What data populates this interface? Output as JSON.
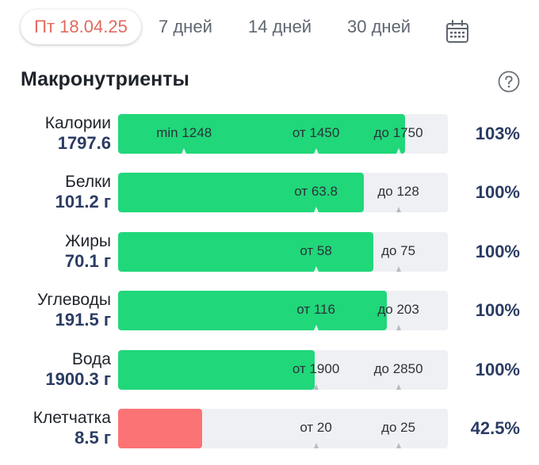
{
  "tabs": {
    "active": "Пт 18.04.25",
    "items": [
      "7 дней",
      "14 дней",
      "30 дней"
    ],
    "calendar_icon": "calendar-icon"
  },
  "section": {
    "title": "Макронутриенты",
    "help_icon": "question-circle-icon"
  },
  "colors": {
    "fill_ok": "#20d77a",
    "fill_low": "#fb7375",
    "active_tab": "#e06a5e",
    "value_text": "#2b3c63"
  },
  "nutrients": [
    {
      "name": "Калории",
      "value": "1797.6",
      "percent": "103%",
      "fill": 0.87,
      "status": "ok",
      "marks": [
        {
          "label": "min 1248",
          "pos": 0.2
        },
        {
          "label": "от 1450",
          "pos": 0.6
        },
        {
          "label": "до 1750",
          "pos": 0.85
        }
      ]
    },
    {
      "name": "Белки",
      "value": "101.2 г",
      "percent": "100%",
      "fill": 0.745,
      "status": "ok",
      "marks": [
        {
          "label": "от 63.8",
          "pos": 0.6
        },
        {
          "label": "до 128",
          "pos": 0.85
        }
      ]
    },
    {
      "name": "Жиры",
      "value": "70.1 г",
      "percent": "100%",
      "fill": 0.775,
      "status": "ok",
      "marks": [
        {
          "label": "от 58",
          "pos": 0.6
        },
        {
          "label": "до 75",
          "pos": 0.85
        }
      ]
    },
    {
      "name": "Углеводы",
      "value": "191.5 г",
      "percent": "100%",
      "fill": 0.815,
      "status": "ok",
      "marks": [
        {
          "label": "от 116",
          "pos": 0.6
        },
        {
          "label": "до 203",
          "pos": 0.85
        }
      ]
    },
    {
      "name": "Вода",
      "value": "1900.3 г",
      "percent": "100%",
      "fill": 0.595,
      "status": "ok",
      "marks": [
        {
          "label": "от 1900",
          "pos": 0.6
        },
        {
          "label": "до 2850",
          "pos": 0.85
        }
      ]
    },
    {
      "name": "Клетчатка",
      "value": "8.5 г",
      "percent": "42.5%",
      "fill": 0.255,
      "status": "low",
      "marks": [
        {
          "label": "от 20",
          "pos": 0.6
        },
        {
          "label": "до 25",
          "pos": 0.85
        }
      ]
    }
  ]
}
